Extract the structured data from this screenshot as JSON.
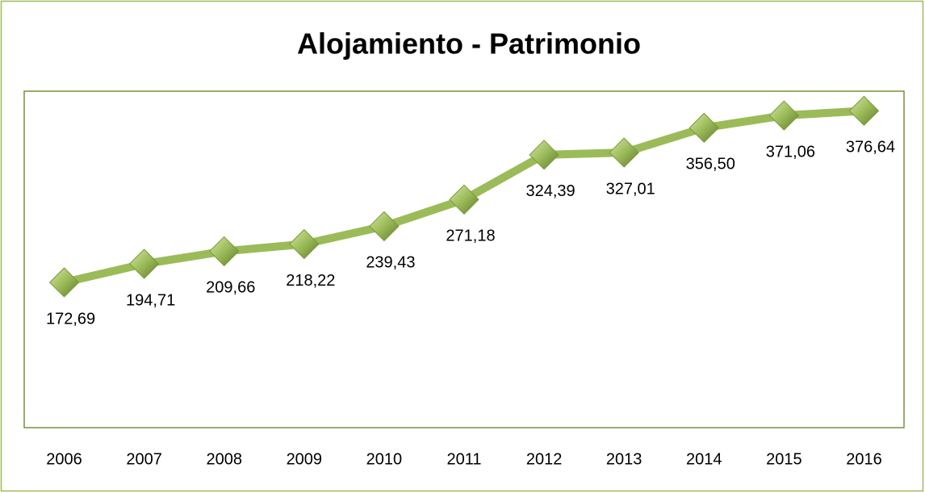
{
  "chart_data": {
    "type": "line",
    "title": "Alojamiento - Patrimonio",
    "categories": [
      "2006",
      "2007",
      "2008",
      "2009",
      "2010",
      "2011",
      "2012",
      "2013",
      "2014",
      "2015",
      "2016"
    ],
    "series": [
      {
        "color": "#9bbb59",
        "values": [
          172.69,
          194.71,
          209.66,
          218.22,
          239.43,
          271.18,
          324.39,
          327.01,
          356.5,
          371.06,
          376.64
        ],
        "value_labels": [
          "172,69",
          "194,71",
          "209,66",
          "218,22",
          "239,43",
          "271,18",
          "324,39",
          "327,01",
          "356,50",
          "371,06",
          "376,64"
        ]
      }
    ],
    "ylim": [
      0,
      400
    ]
  }
}
